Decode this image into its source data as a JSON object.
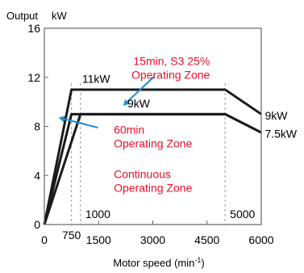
{
  "chart_data": {
    "type": "line",
    "title": "",
    "ylabel_text": "Output",
    "ylabel_unit": "kW",
    "xlabel_text": "Motor speed (min",
    "xlabel_sup": "-1",
    "xlabel_end": ")",
    "xlim": [
      0,
      6000
    ],
    "ylim": [
      0,
      16
    ],
    "yticks": [
      {
        "value": 0,
        "label": "0"
      },
      {
        "value": 4,
        "label": "4"
      },
      {
        "value": 8,
        "label": "8"
      },
      {
        "value": 12,
        "label": "12"
      },
      {
        "value": 16,
        "label": "16"
      }
    ],
    "xticks": [
      {
        "value": 0,
        "label": "0"
      },
      {
        "value": 1500,
        "label": "1500"
      },
      {
        "value": 3000,
        "label": "3000"
      },
      {
        "value": 4500,
        "label": "4500"
      },
      {
        "value": 6000,
        "label": "6000"
      }
    ],
    "ref_lines": [
      {
        "x": 750,
        "label": "750"
      },
      {
        "x": 1000,
        "label": "1000"
      },
      {
        "x": 5000,
        "label": "5000"
      }
    ],
    "series": [
      {
        "name": "15min, S3 25%",
        "x": [
          0,
          750,
          5000,
          6000
        ],
        "y": [
          0,
          11,
          11,
          9
        ]
      },
      {
        "name": "60min",
        "x": [
          0,
          750,
          5000,
          6000
        ],
        "y": [
          0,
          9,
          9,
          7.5
        ]
      },
      {
        "name": "Continuous",
        "x": [
          0,
          1000,
          5000,
          6000
        ],
        "y": [
          0,
          9,
          9,
          7.5
        ]
      }
    ],
    "line_color": "#1a1a1a",
    "annotations": {
      "left_power": [
        {
          "text": "11kW",
          "x": 600,
          "y": 11.15
        },
        {
          "text": "9kW",
          "x": 1850,
          "y": 9.15
        }
      ],
      "end_power": [
        {
          "text": "9kW",
          "x": 6100,
          "y": 8.9
        },
        {
          "text": "7.5kW",
          "x": 6100,
          "y": 7.4
        }
      ],
      "zones": [
        {
          "lines": [
            "15min, S3 25%",
            "Operating Zone"
          ],
          "x": 4580,
          "y": 13.0
        },
        {
          "lines": [
            "60min",
            "Operating Zone"
          ],
          "x": 1920,
          "y": 7.4
        },
        {
          "lines": [
            "Continuous",
            "Operating Zone"
          ],
          "x": 1920,
          "y": 3.8
        }
      ],
      "zone_color": "#e8102a"
    },
    "arrows": [
      {
        "from": [
          3050,
          12.1
        ],
        "to": [
          2200,
          9.75
        ]
      },
      {
        "from": [
          1480,
          7.9
        ],
        "to": [
          420,
          8.7
        ]
      }
    ],
    "arrow_color": "#1a8fd8"
  }
}
